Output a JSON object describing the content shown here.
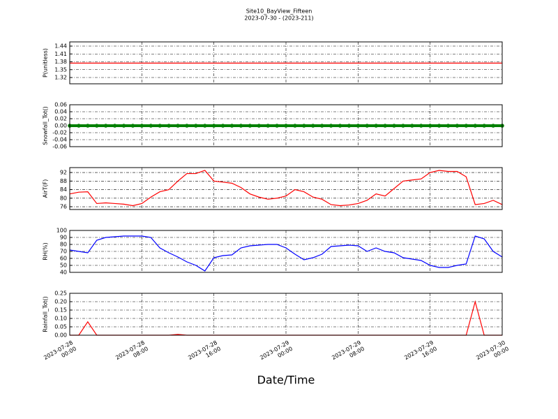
{
  "title": "Site10_BayView_Fifteen",
  "subtitle": "2023-07-30 - (2023-211)",
  "xlabel": "Date/Time",
  "x": [
    "2023-07-28 00:00",
    "2023-07-28 01:00",
    "2023-07-28 02:00",
    "2023-07-28 03:00",
    "2023-07-28 04:00",
    "2023-07-28 05:00",
    "2023-07-28 06:00",
    "2023-07-28 07:00",
    "2023-07-28 08:00",
    "2023-07-28 09:00",
    "2023-07-28 10:00",
    "2023-07-28 11:00",
    "2023-07-28 12:00",
    "2023-07-28 13:00",
    "2023-07-28 14:00",
    "2023-07-28 15:00",
    "2023-07-28 16:00",
    "2023-07-28 17:00",
    "2023-07-28 18:00",
    "2023-07-28 19:00",
    "2023-07-28 20:00",
    "2023-07-28 21:00",
    "2023-07-28 22:00",
    "2023-07-28 23:00",
    "2023-07-29 00:00",
    "2023-07-29 01:00",
    "2023-07-29 02:00",
    "2023-07-29 03:00",
    "2023-07-29 04:00",
    "2023-07-29 05:00",
    "2023-07-29 06:00",
    "2023-07-29 07:00",
    "2023-07-29 08:00",
    "2023-07-29 09:00",
    "2023-07-29 10:00",
    "2023-07-29 11:00",
    "2023-07-29 12:00",
    "2023-07-29 13:00",
    "2023-07-29 14:00",
    "2023-07-29 15:00",
    "2023-07-29 16:00",
    "2023-07-29 17:00",
    "2023-07-29 18:00",
    "2023-07-29 19:00",
    "2023-07-29 20:00",
    "2023-07-29 21:00",
    "2023-07-29 22:00",
    "2023-07-29 23:00",
    "2023-07-30 00:00"
  ],
  "xlim": [
    "2023-07-28 00:00",
    "2023-07-30 00:00"
  ],
  "xticks": [
    {
      "value": "2023-07-28 00:00",
      "label": "2023-07-28\n00:00"
    },
    {
      "value": "2023-07-28 08:00",
      "label": "2023-07-28\n08:00"
    },
    {
      "value": "2023-07-28 16:00",
      "label": "2023-07-28\n16:00"
    },
    {
      "value": "2023-07-29 00:00",
      "label": "2023-07-29\n00:00"
    },
    {
      "value": "2023-07-29 08:00",
      "label": "2023-07-29\n08:00"
    },
    {
      "value": "2023-07-29 16:00",
      "label": "2023-07-29\n16:00"
    },
    {
      "value": "2023-07-30 00:00",
      "label": "2023-07-30\n00:00"
    }
  ],
  "chart_data": [
    {
      "type": "line",
      "ylabel": "P(unitless)",
      "color": "#ff0000",
      "grid": true,
      "ylim": [
        1.296,
        1.456
      ],
      "yticks": [
        1.32,
        1.35,
        1.38,
        1.41,
        1.44
      ],
      "values": [
        1.375,
        1.375,
        1.375,
        1.375,
        1.375,
        1.375,
        1.375,
        1.375,
        1.375,
        1.375,
        1.375,
        1.375,
        1.375,
        1.375,
        1.375,
        1.375,
        1.375,
        1.375,
        1.375,
        1.375,
        1.375,
        1.375,
        1.375,
        1.375,
        1.375,
        1.375,
        1.375,
        1.375,
        1.375,
        1.375,
        1.375,
        1.375,
        1.375,
        1.375,
        1.375,
        1.375,
        1.375,
        1.375,
        1.375,
        1.375,
        1.375,
        1.375,
        1.375,
        1.375,
        1.375,
        1.375,
        1.375,
        1.375,
        1.375
      ]
    },
    {
      "type": "scatter",
      "ylabel": "Snowfall_Tot()",
      "color": "#008000",
      "grid": true,
      "ylim": [
        -0.06,
        0.06
      ],
      "yticks": [
        -0.06,
        -0.04,
        -0.02,
        {
          "value": 0,
          "label": "0.00"
        },
        0.02,
        0.04,
        0.06
      ],
      "values": [
        0,
        0,
        0,
        0,
        0,
        0,
        0,
        0,
        0,
        0,
        0,
        0,
        0,
        0,
        0,
        0,
        0,
        0,
        0,
        0,
        0,
        0,
        0,
        0,
        0,
        0,
        0,
        0,
        0,
        0,
        0,
        0,
        0,
        0,
        0,
        0,
        0,
        0,
        0,
        0,
        0,
        0,
        0,
        0,
        0,
        0,
        0,
        0,
        0
      ]
    },
    {
      "type": "line",
      "ylabel": "AirT(F)",
      "color": "#ff0000",
      "grid": true,
      "ylim": [
        74.7,
        94.3
      ],
      "yticks": [
        76,
        80,
        84,
        88,
        92
      ],
      "values": [
        82,
        82.8,
        83,
        77.5,
        77.8,
        77.5,
        77.2,
        76.5,
        77.5,
        80.5,
        83,
        84,
        88,
        91.5,
        91.5,
        93,
        88,
        87.5,
        87,
        85,
        82,
        80.5,
        79.5,
        80,
        81,
        84,
        83,
        80.5,
        79.5,
        77,
        76.5,
        76.8,
        77.5,
        79,
        82,
        81,
        84.5,
        88,
        88.5,
        89,
        92,
        93,
        92.5,
        92.5,
        90,
        77,
        77.5,
        79,
        77
      ]
    },
    {
      "type": "line",
      "ylabel": "RH(%)",
      "color": "#0000ff",
      "grid": true,
      "ylim": [
        40,
        100
      ],
      "yticks": [
        40,
        50,
        60,
        70,
        80,
        90,
        100
      ],
      "values": [
        72,
        70,
        68,
        86,
        90,
        91,
        92,
        92,
        92,
        90,
        75,
        68,
        62,
        55,
        50,
        42,
        61,
        64,
        65,
        75,
        78,
        79,
        80,
        80,
        75,
        66,
        58,
        61,
        66,
        77,
        78,
        79,
        78,
        70,
        75,
        70,
        68,
        61,
        59,
        57,
        50,
        47,
        47,
        50,
        52,
        92,
        88,
        70,
        62
      ]
    },
    {
      "type": "line",
      "ylabel": "Rainfall_Tot()",
      "color": "#ff0000",
      "grid": true,
      "ylim": [
        0,
        0.25
      ],
      "yticks": [
        {
          "value": 0,
          "label": "0.00"
        },
        0.05,
        {
          "value": 0.1,
          "label": "0.10"
        },
        0.15,
        {
          "value": 0.2,
          "label": "0.20"
        },
        0.25
      ],
      "values": [
        0,
        0,
        0.08,
        0,
        0,
        0,
        0,
        0,
        0,
        0,
        0,
        0,
        0.005,
        0,
        0,
        0,
        0,
        0,
        0,
        0,
        0,
        0,
        0,
        0,
        0,
        0,
        0,
        0,
        0,
        0,
        0,
        0,
        0,
        0,
        0,
        0,
        0,
        0,
        0,
        0,
        0,
        0,
        0,
        0,
        0,
        0.2,
        0,
        0,
        0
      ]
    }
  ]
}
